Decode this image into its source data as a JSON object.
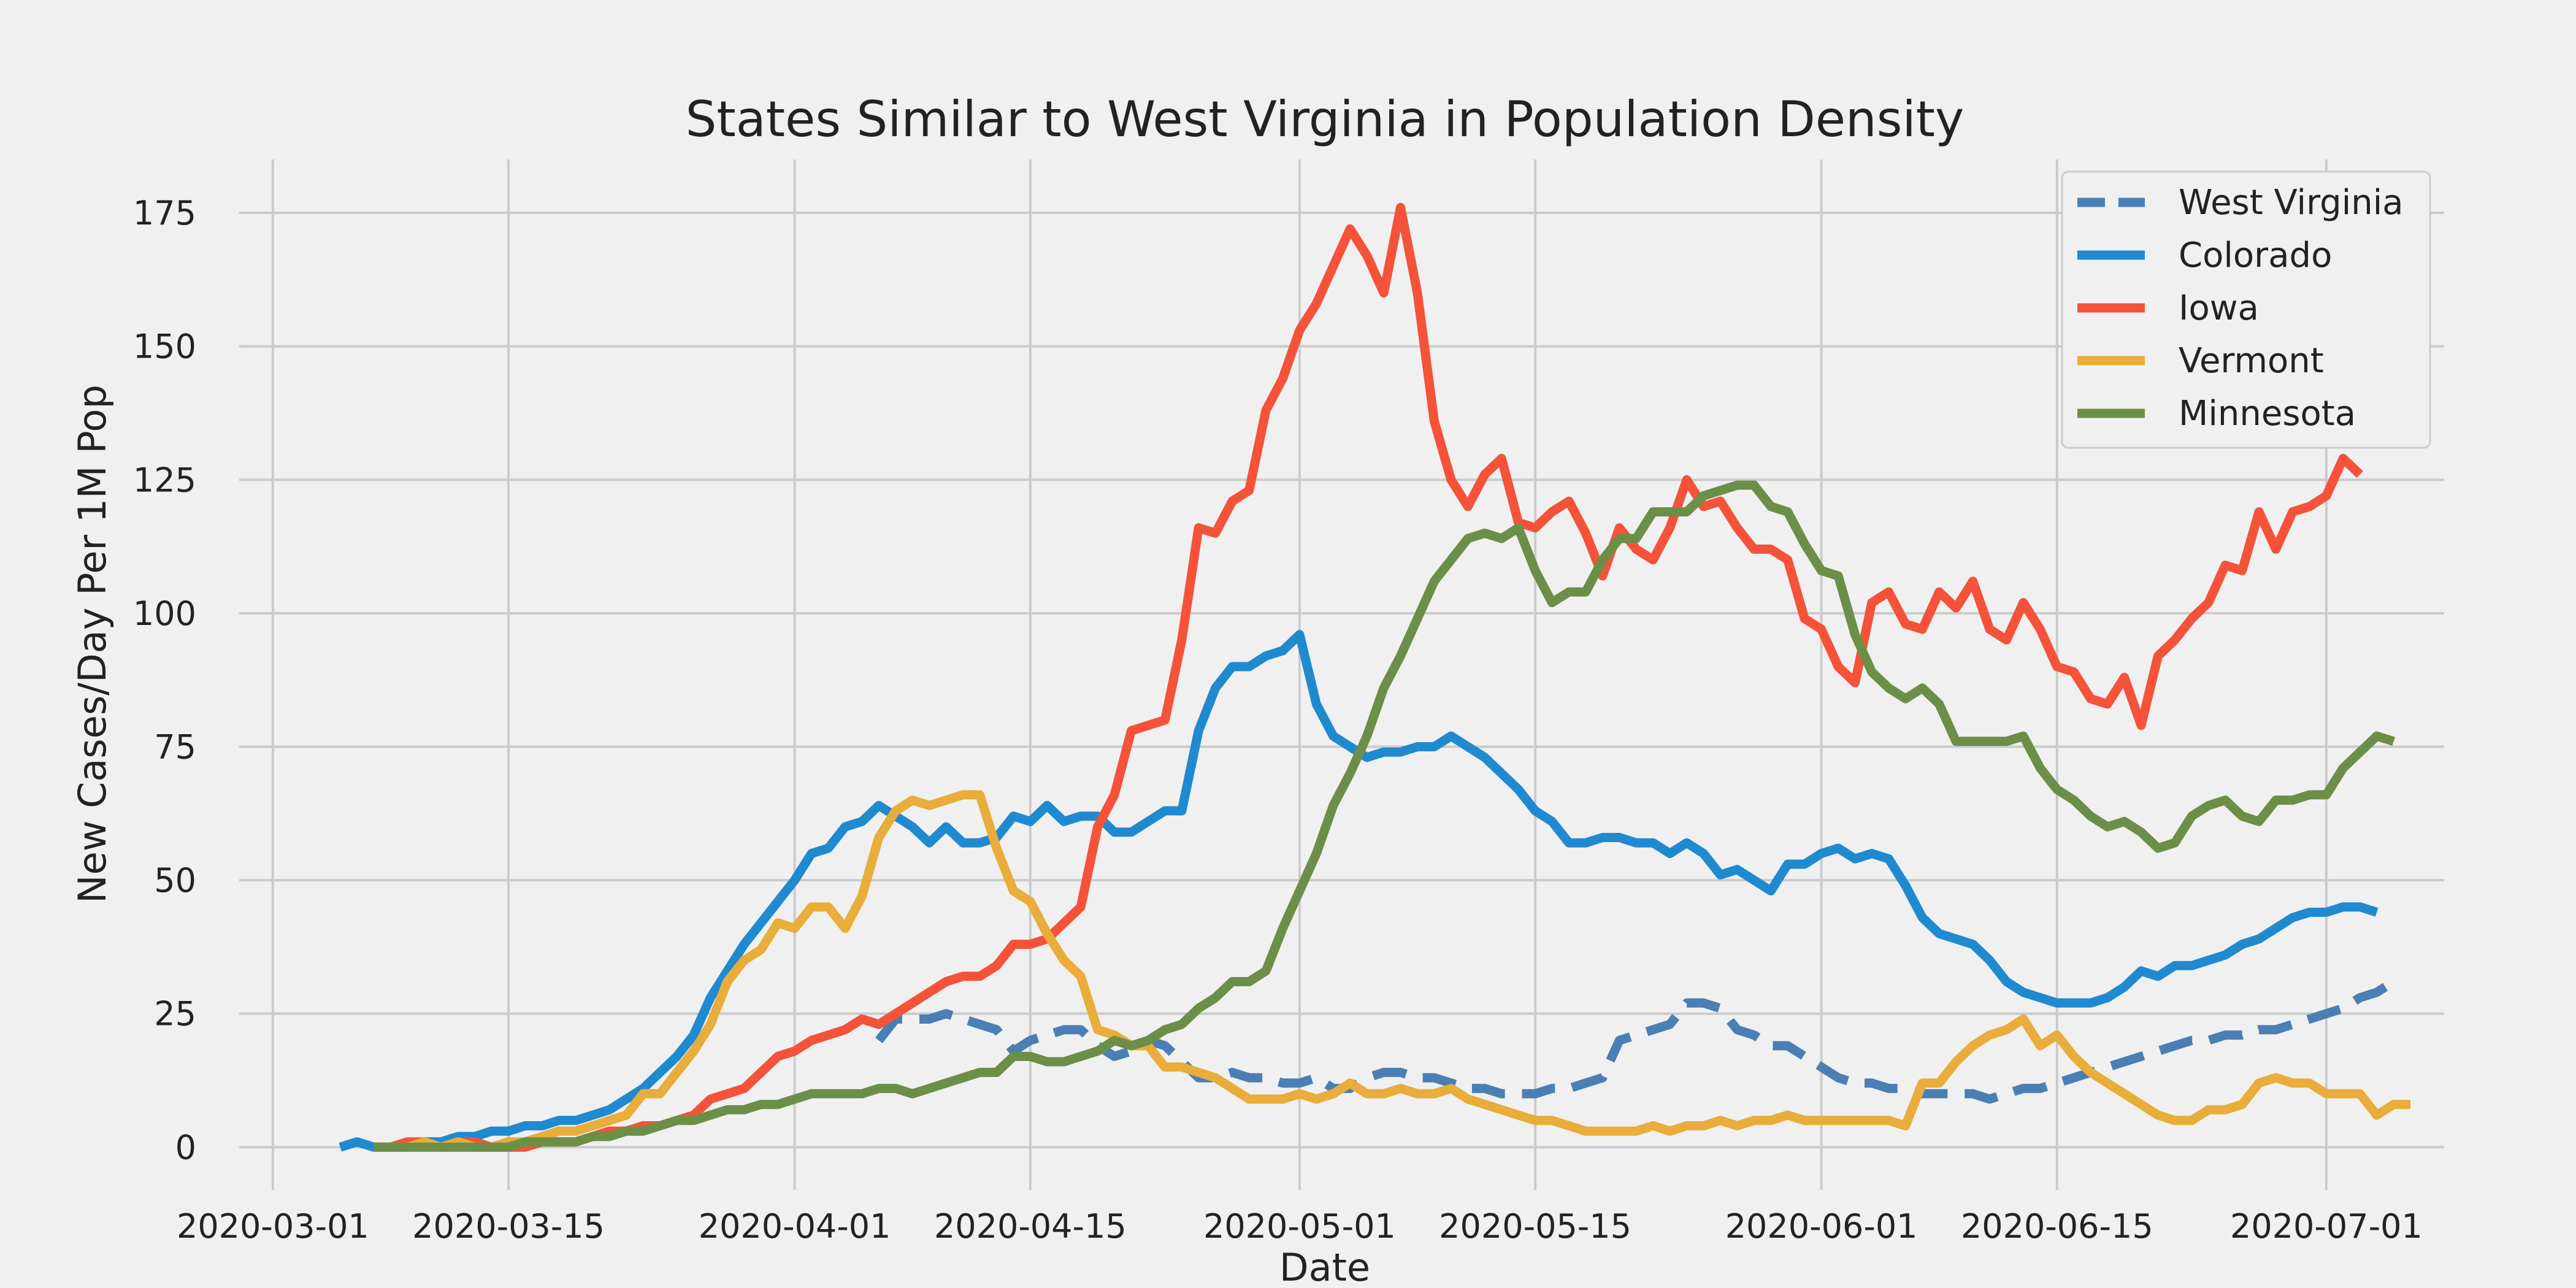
{
  "chart_data": {
    "type": "line",
    "title": "States Similar to West Virginia in Population Density",
    "xlabel": "Date",
    "ylabel": "New Cases/Day Per 1M Pop",
    "xlim": [
      "2020-02-28",
      "2020-07-08"
    ],
    "ylim": [
      -8,
      185
    ],
    "x_ticks": [
      "2020-03-01",
      "2020-03-15",
      "2020-04-01",
      "2020-04-15",
      "2020-05-01",
      "2020-05-15",
      "2020-06-01",
      "2020-06-15",
      "2020-07-01"
    ],
    "y_ticks": [
      0,
      25,
      50,
      75,
      100,
      125,
      150,
      175
    ],
    "grid": true,
    "legend_position": "top-right",
    "background": "#f0f0f0",
    "series": [
      {
        "name": "West Virginia",
        "color": "#4a7fb5",
        "style": "dashed",
        "start": "2020-04-06",
        "values": [
          20,
          24,
          24,
          24,
          25,
          24,
          23,
          22,
          18,
          20,
          21,
          22,
          22,
          19,
          17,
          18,
          20,
          19,
          16,
          13,
          13,
          14,
          13,
          13,
          12,
          12,
          13,
          11,
          11,
          13,
          14,
          14,
          13,
          13,
          12,
          11,
          11,
          10,
          10,
          10,
          11,
          11,
          12,
          13,
          20,
          21,
          22,
          23,
          27,
          27,
          26,
          22,
          21,
          19,
          19,
          17,
          15,
          13,
          12,
          12,
          11,
          11,
          10,
          10,
          10,
          10,
          9,
          10,
          11,
          11,
          12,
          13,
          14,
          15,
          16,
          17,
          18,
          19,
          20,
          20,
          21,
          21,
          22,
          22,
          23,
          24,
          25,
          26,
          28,
          29,
          31
        ]
      },
      {
        "name": "Colorado",
        "color": "#1f8ad0",
        "style": "solid",
        "start": "2020-03-05",
        "values": [
          0,
          1,
          0,
          0,
          0,
          1,
          1,
          2,
          2,
          3,
          3,
          4,
          4,
          5,
          5,
          6,
          7,
          9,
          11,
          14,
          17,
          21,
          28,
          33,
          38,
          42,
          46,
          50,
          55,
          56,
          60,
          61,
          64,
          62,
          60,
          57,
          60,
          57,
          57,
          58,
          62,
          61,
          64,
          61,
          62,
          62,
          59,
          59,
          61,
          63,
          63,
          78,
          86,
          90,
          90,
          92,
          93,
          96,
          83,
          77,
          75,
          73,
          74,
          74,
          75,
          75,
          77,
          75,
          73,
          70,
          67,
          63,
          61,
          57,
          57,
          58,
          58,
          57,
          57,
          55,
          57,
          55,
          51,
          52,
          50,
          48,
          53,
          53,
          55,
          56,
          54,
          55,
          54,
          49,
          43,
          40,
          39,
          38,
          35,
          31,
          29,
          28,
          27,
          27,
          27,
          28,
          30,
          33,
          32,
          34,
          34,
          35,
          36,
          38,
          39,
          41,
          43,
          44,
          44,
          45,
          45,
          44
        ]
      },
      {
        "name": "Iowa",
        "color": "#f4533a",
        "style": "solid",
        "start": "2020-03-07",
        "values": [
          0,
          0,
          1,
          1,
          0,
          1,
          1,
          0,
          0,
          0,
          1,
          1,
          1,
          2,
          3,
          3,
          4,
          4,
          5,
          6,
          9,
          10,
          11,
          14,
          17,
          18,
          20,
          21,
          22,
          24,
          23,
          25,
          27,
          29,
          31,
          32,
          32,
          34,
          38,
          38,
          39,
          42,
          45,
          60,
          66,
          78,
          79,
          80,
          95,
          116,
          115,
          121,
          123,
          138,
          144,
          153,
          158,
          165,
          172,
          167,
          160,
          176,
          160,
          136,
          125,
          120,
          126,
          129,
          117,
          116,
          119,
          121,
          115,
          107,
          116,
          112,
          110,
          116,
          125,
          120,
          121,
          116,
          112,
          112,
          110,
          99,
          97,
          90,
          87,
          102,
          104,
          98,
          97,
          104,
          101,
          106,
          97,
          95,
          102,
          97,
          90,
          89,
          84,
          83,
          88,
          79,
          92,
          95,
          99,
          102,
          109,
          108,
          119,
          112,
          119,
          120,
          122,
          129,
          126
        ]
      },
      {
        "name": "Vermont",
        "color": "#e8ad3a",
        "style": "solid",
        "start": "2020-03-07",
        "values": [
          0,
          0,
          0,
          1,
          0,
          1,
          0,
          0,
          1,
          1,
          2,
          3,
          3,
          4,
          5,
          6,
          10,
          10,
          14,
          18,
          23,
          31,
          35,
          37,
          42,
          41,
          45,
          45,
          41,
          47,
          58,
          63,
          65,
          64,
          65,
          66,
          66,
          56,
          48,
          46,
          40,
          35,
          32,
          22,
          21,
          19,
          19,
          15,
          15,
          14,
          13,
          11,
          9,
          9,
          9,
          10,
          9,
          10,
          12,
          10,
          10,
          11,
          10,
          10,
          11,
          9,
          8,
          7,
          6,
          5,
          5,
          4,
          3,
          3,
          3,
          3,
          4,
          3,
          4,
          4,
          5,
          4,
          5,
          5,
          6,
          5,
          5,
          5,
          5,
          5,
          5,
          4,
          12,
          12,
          16,
          19,
          21,
          22,
          24,
          19,
          21,
          17,
          14,
          12,
          10,
          8,
          6,
          5,
          5,
          7,
          7,
          8,
          12,
          13,
          12,
          12,
          10,
          10,
          10,
          6,
          8,
          8
        ]
      },
      {
        "name": "Minnesota",
        "color": "#6b8f47",
        "style": "solid",
        "start": "2020-03-07",
        "values": [
          0,
          0,
          0,
          0,
          0,
          0,
          0,
          0,
          0,
          1,
          1,
          1,
          1,
          2,
          2,
          3,
          3,
          4,
          5,
          5,
          6,
          7,
          7,
          8,
          8,
          9,
          10,
          10,
          10,
          10,
          11,
          11,
          10,
          11,
          12,
          13,
          14,
          14,
          17,
          17,
          16,
          16,
          17,
          18,
          20,
          19,
          20,
          22,
          23,
          26,
          28,
          31,
          31,
          33,
          41,
          48,
          55,
          64,
          70,
          77,
          86,
          92,
          99,
          106,
          110,
          114,
          115,
          114,
          116,
          108,
          102,
          104,
          104,
          110,
          114,
          114,
          119,
          119,
          119,
          122,
          123,
          124,
          124,
          120,
          119,
          113,
          108,
          107,
          96,
          89,
          86,
          84,
          86,
          83,
          76,
          76,
          76,
          76,
          77,
          71,
          67,
          65,
          62,
          60,
          61,
          59,
          56,
          57,
          62,
          64,
          65,
          62,
          61,
          65,
          65,
          66,
          66,
          71,
          74,
          77,
          76
        ]
      }
    ]
  }
}
